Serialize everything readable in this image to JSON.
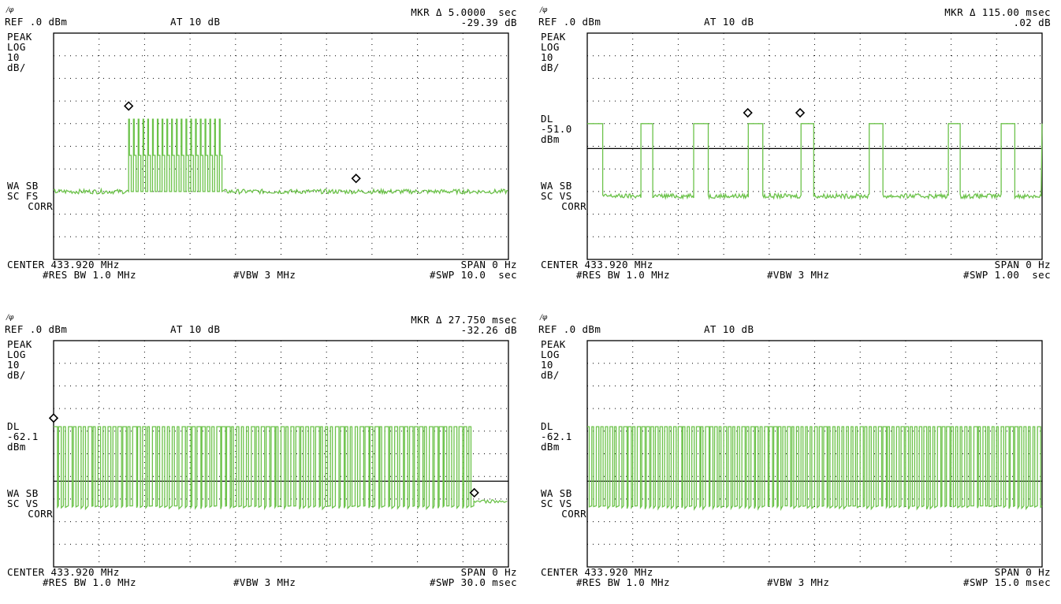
{
  "panels": [
    {
      "ref": "REF .0 dBm",
      "at": "AT 10 dB",
      "mkr_line1": "MKR Δ 5.0000  sec",
      "mkr_line2": "-29.39 dB",
      "peak": "PEAK",
      "log": "LOG",
      "scale": "10",
      "unit": "dB/",
      "dl": "",
      "dl_value": "",
      "dl_unit": "",
      "wa": "WA SB",
      "sc": "SC FS",
      "corr": "CORR",
      "center": "CENTER 433.920 MHz",
      "span": "SPAN 0 Hz",
      "rbw": "#RES BW 1.0 MHz",
      "vbw": "#VBW 3 MHz",
      "swp": "#SWP 10.0  sec"
    },
    {
      "ref": "REF .0 dBm",
      "at": "AT 10 dB",
      "mkr_line1": "MKR Δ 115.00 msec",
      "mkr_line2": ".02 dB",
      "peak": "PEAK",
      "log": "LOG",
      "scale": "10",
      "unit": "dB/",
      "dl": "DL",
      "dl_value": "-51.0",
      "dl_unit": "dBm",
      "wa": "WA SB",
      "sc": "SC VS",
      "corr": "CORR",
      "center": "CENTER 433.920 MHz",
      "span": "SPAN 0 Hz",
      "rbw": "#RES BW 1.0 MHz",
      "vbw": "#VBW 3 MHz",
      "swp": "#SWP 1.00  sec"
    },
    {
      "ref": "REF .0 dBm",
      "at": "AT 10 dB",
      "mkr_line1": "MKR Δ 27.750 msec",
      "mkr_line2": "-32.26 dB",
      "peak": "PEAK",
      "log": "LOG",
      "scale": "10",
      "unit": "dB/",
      "dl": "DL",
      "dl_value": "-62.1",
      "dl_unit": "dBm",
      "wa": "WA SB",
      "sc": "SC VS",
      "corr": "CORR",
      "center": "CENTER 433.920 MHz",
      "span": "SPAN 0 Hz",
      "rbw": "#RES BW 1.0 MHz",
      "vbw": "#VBW 3 MHz",
      "swp": "#SWP 30.0 msec"
    },
    {
      "ref": "REF .0 dBm",
      "at": "AT 10 dB",
      "mkr_line1": "",
      "mkr_line2": "",
      "peak": "PEAK",
      "log": "LOG",
      "scale": "10",
      "unit": "dB/",
      "dl": "DL",
      "dl_value": "-62.1",
      "dl_unit": "dBm",
      "wa": "WA SB",
      "sc": "SC VS",
      "corr": "CORR",
      "center": "CENTER 433.920 MHz",
      "span": "SPAN 0 Hz",
      "rbw": "#RES BW 1.0 MHz",
      "vbw": "#VBW 3 MHz",
      "swp": "#SWP 15.0 msec"
    }
  ],
  "colors": {
    "trace": "#6cc24a",
    "grid": "#000000",
    "text": "#000000"
  },
  "chart_data": [
    {
      "type": "line",
      "ref_level_dbm": 0,
      "scale_db_per_div": 10,
      "ylim": [
        -100,
        0
      ],
      "sweep_time": "10.0 s",
      "xlim": [
        0,
        10
      ],
      "display_line_dbm": null,
      "noise_floor_dbm": -70,
      "high_level_dbm": -38,
      "mid_level_dbm": -54,
      "bursts": [
        {
          "start": 1.65,
          "end": 3.75,
          "count": 20
        }
      ],
      "markers": [
        {
          "x": 1.65,
          "y": -35
        },
        {
          "x": 6.65,
          "y": -67
        }
      ],
      "marker_delta": {
        "time": "5.0000 s",
        "level": "-29.39 dB"
      }
    },
    {
      "type": "line",
      "ref_level_dbm": 0,
      "scale_db_per_div": 10,
      "ylim": [
        -100,
        0
      ],
      "sweep_time": "1.00 s",
      "xlim": [
        0,
        1.0
      ],
      "display_line_dbm": -51.0,
      "noise_floor_dbm": -72,
      "high_level_dbm": -40,
      "pulses": [
        [
          0,
          0.033
        ],
        [
          0.118,
          0.143
        ],
        [
          0.234,
          0.265
        ],
        [
          0.353,
          0.385
        ],
        [
          0.47,
          0.498
        ],
        [
          0.62,
          0.65
        ],
        [
          0.793,
          0.82
        ],
        [
          0.91,
          0.94
        ]
      ],
      "markers": [
        {
          "x": 0.353,
          "y": -38
        },
        {
          "x": 0.468,
          "y": -38
        }
      ],
      "marker_delta": {
        "time": "115.00 msec",
        "level": ".02 dB"
      }
    },
    {
      "type": "line",
      "ref_level_dbm": 0,
      "scale_db_per_div": 10,
      "ylim": [
        -100,
        0
      ],
      "sweep_time": "30.0 ms",
      "xlim": [
        0,
        30
      ],
      "display_line_dbm": -62.1,
      "noise_floor_dbm": -72,
      "high_level_dbm": -38,
      "burst_end_ms": 27.7,
      "markers": [
        {
          "x": 0,
          "y": -37
        },
        {
          "x": 27.75,
          "y": -70
        }
      ],
      "marker_delta": {
        "time": "27.750 msec",
        "level": "-32.26 dB"
      }
    },
    {
      "type": "line",
      "ref_level_dbm": 0,
      "scale_db_per_div": 10,
      "ylim": [
        -100,
        0
      ],
      "sweep_time": "15.0 ms",
      "xlim": [
        0,
        15
      ],
      "display_line_dbm": -62.1,
      "noise_floor_dbm": -72,
      "high_level_dbm": -38,
      "burst_end_ms": 15,
      "markers": []
    }
  ]
}
